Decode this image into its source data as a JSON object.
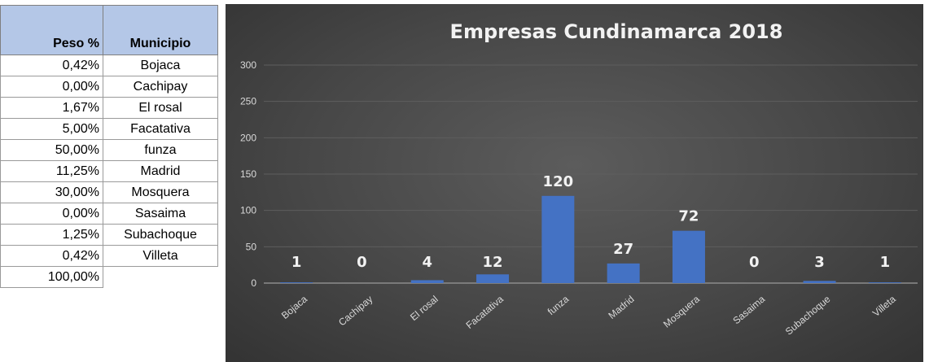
{
  "table": {
    "headers": {
      "peso": "Peso %",
      "municipio": "Municipio"
    },
    "rows": [
      {
        "peso": "0,42%",
        "municipio": "Bojaca"
      },
      {
        "peso": "0,00%",
        "municipio": "Cachipay"
      },
      {
        "peso": "1,67%",
        "municipio": "El rosal"
      },
      {
        "peso": "5,00%",
        "municipio": "Facatativa"
      },
      {
        "peso": "50,00%",
        "municipio": "funza"
      },
      {
        "peso": "11,25%",
        "municipio": "Madrid"
      },
      {
        "peso": "30,00%",
        "municipio": "Mosquera"
      },
      {
        "peso": "0,00%",
        "municipio": "Sasaima"
      },
      {
        "peso": "1,25%",
        "municipio": "Subachoque"
      },
      {
        "peso": "0,42%",
        "municipio": "Villeta"
      }
    ],
    "total": "100,00%"
  },
  "chart_data": {
    "type": "bar",
    "title": "Empresas Cundinamarca 2018",
    "categories": [
      "Bojaca",
      "Cachipay",
      "El rosal",
      "Facatativa",
      "funza",
      "Madrid",
      "Mosquera",
      "Sasaima",
      "Subachoque",
      "Villeta"
    ],
    "values": [
      1,
      0,
      4,
      12,
      120,
      27,
      72,
      0,
      3,
      1
    ],
    "data_labels": [
      "1",
      "0",
      "4",
      "12",
      "120",
      "27",
      "72",
      "0",
      "3",
      "1"
    ],
    "xlabel": "",
    "ylabel": "",
    "ylim": [
      0,
      300
    ],
    "yticks": [
      0,
      50,
      100,
      150,
      200,
      250,
      300
    ],
    "grid": true,
    "legend": "none",
    "colors": {
      "bar": "#4472c4",
      "background": "#404040",
      "text": "#d9d9d9",
      "header": "#b4c7e7"
    }
  }
}
